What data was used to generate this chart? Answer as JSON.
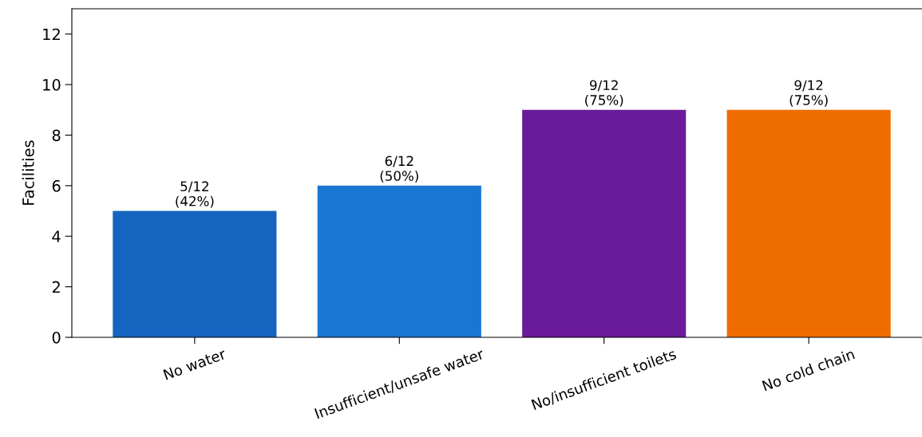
{
  "chart_data": {
    "type": "bar",
    "ylabel": "Facilities",
    "categories": [
      "No water",
      "Insufficient/unsafe water",
      "No/insufficient toilets",
      "No cold chain"
    ],
    "values": [
      5,
      6,
      9,
      9
    ],
    "colors": [
      "#1565c0",
      "#1976d2",
      "#6a1b9a",
      "#ef6c00"
    ],
    "value_labels": [
      "5/12\n(42%)",
      "6/12\n(50%)",
      "9/12\n(75%)",
      "9/12\n(75%)"
    ],
    "ylim": [
      0,
      13
    ],
    "yticks": [
      0,
      2,
      4,
      6,
      8,
      10,
      12
    ],
    "grid": false,
    "legend": false
  }
}
